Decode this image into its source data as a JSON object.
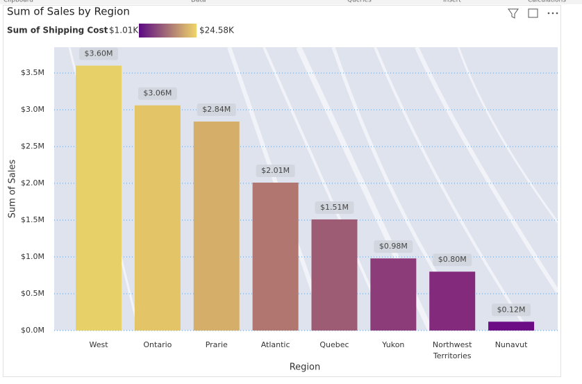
{
  "ribbon": [
    "Clipboard",
    "Data",
    "Queries",
    "Insert",
    "Calculations"
  ],
  "chart_data": {
    "type": "bar",
    "title": "Sum of Sales by Region",
    "x_label": "Region",
    "y_label": "Sum of Sales",
    "categories": [
      "West",
      "Ontario",
      "Prarie",
      "Atlantic",
      "Quebec",
      "Yukon",
      "Northwest Territories",
      "Nunavut"
    ],
    "values": [
      3600000,
      3060000,
      2840000,
      2010000,
      1510000,
      980000,
      800000,
      120000
    ],
    "value_labels": [
      "$3.60M",
      "$3.06M",
      "$2.84M",
      "$2.01M",
      "$1.51M",
      "$0.98M",
      "$0.80M",
      "$0.12M"
    ],
    "colors": [
      "#e8d068",
      "#e3c466",
      "#d5af6a",
      "#b0766f",
      "#9e5c74",
      "#8d3c7a",
      "#832a7c",
      "#6c0d86"
    ],
    "ylim": [
      0,
      3850000
    ],
    "yticks": [
      {
        "value": 0,
        "label": "$0.0M"
      },
      {
        "value": 500000,
        "label": "$0.5M"
      },
      {
        "value": 1000000,
        "label": "$1.0M"
      },
      {
        "value": 1500000,
        "label": "$1.5M"
      },
      {
        "value": 2000000,
        "label": "$2.0M"
      },
      {
        "value": 2500000,
        "label": "$2.5M"
      },
      {
        "value": 3000000,
        "label": "$3.0M"
      },
      {
        "value": 3500000,
        "label": "$3.5M"
      }
    ],
    "grid": true,
    "legend": {
      "title": "Sum of Shipping Cost",
      "min": {
        "value": 1010,
        "label": "$1.01K"
      },
      "max": {
        "value": 24580,
        "label": "$24.58K"
      },
      "colors": [
        "#5c0a83",
        "#efd56a"
      ]
    }
  }
}
